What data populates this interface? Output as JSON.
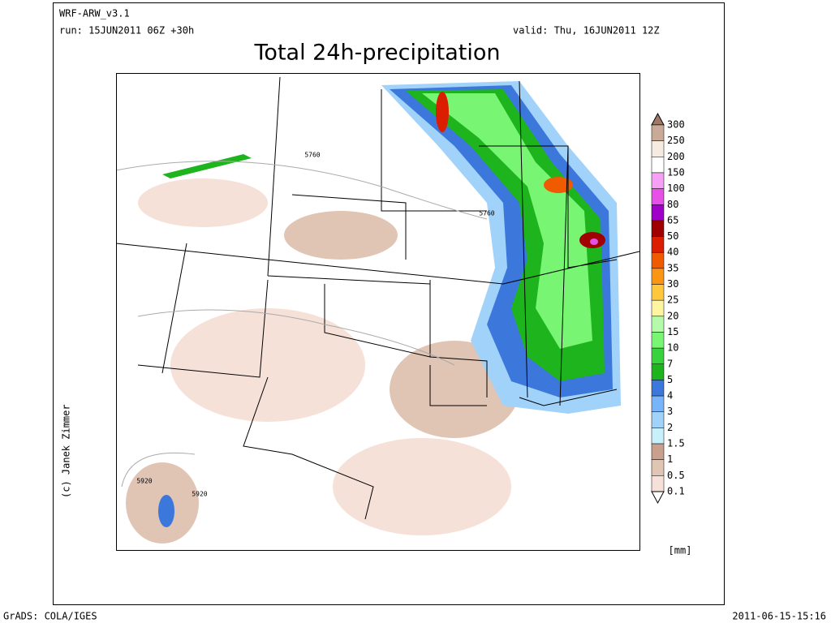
{
  "header": {
    "model": "WRF-ARW_v3.1",
    "run": "run: 15JUN2011 06Z +30h",
    "valid": "valid: Thu, 16JUN2011 12Z",
    "title": "Total 24h-precipitation"
  },
  "map": {
    "contour_labels": [
      "5760",
      "5760",
      "5920",
      "5920"
    ],
    "credit": "(c) Janek Zimmer"
  },
  "legend": {
    "unit": "[mm]",
    "levels": [
      "300",
      "250",
      "200",
      "150",
      "100",
      "80",
      "65",
      "50",
      "40",
      "35",
      "30",
      "25",
      "20",
      "15",
      "10",
      "7",
      "5",
      "4",
      "3",
      "2",
      "1.5",
      "1",
      "0.5",
      "0.1"
    ],
    "colors": [
      "#a07868",
      "#c8aa96",
      "#f5ebe1",
      "#ffffff",
      "#f5a0f5",
      "#e650e6",
      "#a000c8",
      "#a00000",
      "#dc1e00",
      "#f05a00",
      "#fa9614",
      "#ffc83c",
      "#fff5a0",
      "#b4faaa",
      "#78f573",
      "#37d23c",
      "#1eb41e",
      "#3c78dc",
      "#78b4fa",
      "#a0d2fa",
      "#c8f0fa",
      "#c8a08c",
      "#e0c4b4",
      "#f5e1d7",
      "#ffffff"
    ]
  },
  "footer": {
    "left": "GrADS: COLA/IGES",
    "right": "2011-06-15-15:16"
  }
}
